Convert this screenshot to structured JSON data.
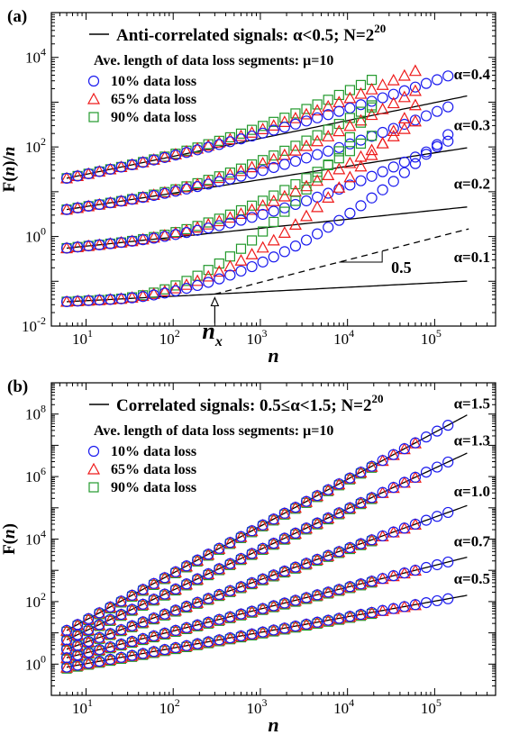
{
  "colors": {
    "blue": "#1a1aee",
    "red": "#ee1a1a",
    "green": "#22992c",
    "line": "#000000"
  },
  "chart_data": [
    {
      "panel_label": "(a)",
      "type": "scatter",
      "ylabel_parts": [
        "F(",
        "n",
        ")/",
        "n"
      ],
      "xlabel": "n",
      "x_scale": "log",
      "y_scale": "log",
      "xlim": [
        4,
        500000
      ],
      "ylim": [
        0.01,
        100000
      ],
      "x_ticks": [
        {
          "b": "10",
          "e": "1"
        },
        {
          "b": "10",
          "e": "2"
        },
        {
          "b": "10",
          "e": "3"
        },
        {
          "b": "10",
          "e": "4"
        },
        {
          "b": "10",
          "e": "5"
        }
      ],
      "y_ticks": [
        {
          "b": "10",
          "e": "-2"
        },
        {
          "b": "10",
          "e": "0"
        },
        {
          "b": "10",
          "e": "2"
        },
        {
          "b": "10",
          "e": "4"
        }
      ],
      "legend_title": [
        "Anti-correlated signals: α<0.5;  N=2",
        "20"
      ],
      "legend_subtitle": "Ave. length of data loss segments: μ=10",
      "series_labels": [
        "10% data loss",
        "65% data loss",
        "90% data loss"
      ],
      "curves": [
        {
          "alpha_label": "α=0.4",
          "start": 20,
          "slope": -0.6,
          "ends": {
            "blue": 160000,
            "red": 80000,
            "green": 20000
          },
          "bend_exp": [
            0.06,
            0.11,
            0.15
          ]
        },
        {
          "alpha_label": "α=0.3",
          "start": 4,
          "slope": -0.7,
          "ends": {
            "blue": 160000,
            "red": 80000,
            "green": 20000
          },
          "bend_exp": [
            0.11,
            0.2,
            0.24
          ]
        },
        {
          "alpha_label": "α=0.2",
          "start": 0.55,
          "slope": -0.8,
          "ends": {
            "blue": 160000,
            "red": 80000,
            "green": 20000
          },
          "bend_exp": [
            0.17,
            0.28,
            0.34
          ]
        },
        {
          "alpha_label": "α=0.1",
          "start": 0.035,
          "slope": -0.9,
          "ends": {
            "blue": 160000,
            "red": 80000,
            "green": 20000
          },
          "bend_exp": [
            0.37,
            0.55,
            0.75
          ]
        }
      ],
      "annotations": {
        "nx_label": [
          "n",
          "x"
        ],
        "nx_value": 300,
        "slope_label": "0.5",
        "slope_value": -0.5
      }
    },
    {
      "panel_label": "(b)",
      "type": "scatter",
      "ylabel_parts": [
        "F(",
        "n",
        ")"
      ],
      "xlabel": "n",
      "x_scale": "log",
      "y_scale": "log",
      "xlim": [
        4,
        500000
      ],
      "ylim": [
        0.1,
        1000000000
      ],
      "x_ticks": [
        {
          "b": "10",
          "e": "1"
        },
        {
          "b": "10",
          "e": "2"
        },
        {
          "b": "10",
          "e": "3"
        },
        {
          "b": "10",
          "e": "4"
        },
        {
          "b": "10",
          "e": "5"
        }
      ],
      "y_ticks": [
        {
          "b": "10",
          "e": "0"
        },
        {
          "b": "10",
          "e": "2"
        },
        {
          "b": "10",
          "e": "4"
        },
        {
          "b": "10",
          "e": "6"
        },
        {
          "b": "10",
          "e": "8"
        }
      ],
      "legend_title": [
        "Correlated signals: 0.5≤α<1.5;  N=2",
        "20"
      ],
      "legend_subtitle": "Ave. length of data loss segments: μ=10",
      "series_labels": [
        "10% data loss",
        "65% data loss",
        "90% data loss"
      ],
      "curves": [
        {
          "alpha_label": "α=1.5",
          "start": 12,
          "slope": 1.5,
          "ends": {
            "blue": 160000,
            "red": 80000,
            "green": 20000
          }
        },
        {
          "alpha_label": "α=1.3",
          "start": 6,
          "slope": 1.3,
          "ends": {
            "blue": 160000,
            "red": 80000,
            "green": 20000
          }
        },
        {
          "alpha_label": "α=1.0",
          "start": 3,
          "slope": 1.0,
          "ends": {
            "blue": 160000,
            "red": 80000,
            "green": 20000
          }
        },
        {
          "alpha_label": "α=0.7",
          "start": 1.6,
          "slope": 0.7,
          "ends": {
            "blue": 160000,
            "red": 80000,
            "green": 20000
          }
        },
        {
          "alpha_label": "α=0.5",
          "start": 0.8,
          "slope": 0.5,
          "ends": {
            "blue": 160000,
            "red": 80000,
            "green": 20000
          }
        }
      ]
    }
  ]
}
